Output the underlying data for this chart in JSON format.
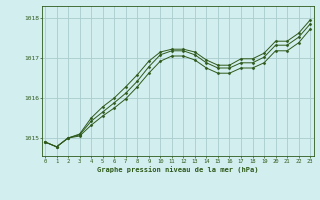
{
  "title": "Graphe pression niveau de la mer (hPa)",
  "bg_color": "#d3eeee",
  "grid_color": "#aacccc",
  "line_color": "#2d5a1b",
  "x_ticks": [
    0,
    1,
    2,
    3,
    4,
    5,
    6,
    7,
    8,
    9,
    10,
    11,
    12,
    13,
    14,
    15,
    16,
    17,
    18,
    19,
    20,
    21,
    22,
    23
  ],
  "y_ticks": [
    1015,
    1016,
    1017,
    1018
  ],
  "ylim": [
    1014.55,
    1018.3
  ],
  "xlim": [
    -0.3,
    23.3
  ],
  "line1": [
    1014.9,
    1014.78,
    1015.0,
    1015.1,
    1015.5,
    1015.78,
    1016.0,
    1016.28,
    1016.58,
    1016.92,
    1017.15,
    1017.22,
    1017.22,
    1017.15,
    1016.95,
    1016.82,
    1016.82,
    1016.98,
    1016.98,
    1017.12,
    1017.42,
    1017.42,
    1017.62,
    1017.95
  ],
  "line2": [
    1014.9,
    1014.78,
    1015.0,
    1015.08,
    1015.42,
    1015.65,
    1015.88,
    1016.12,
    1016.42,
    1016.78,
    1017.08,
    1017.18,
    1017.18,
    1017.08,
    1016.88,
    1016.75,
    1016.75,
    1016.88,
    1016.88,
    1017.02,
    1017.32,
    1017.32,
    1017.52,
    1017.85
  ],
  "line3": [
    1014.9,
    1014.78,
    1015.0,
    1015.05,
    1015.32,
    1015.55,
    1015.75,
    1015.98,
    1016.28,
    1016.62,
    1016.92,
    1017.05,
    1017.05,
    1016.95,
    1016.75,
    1016.62,
    1016.62,
    1016.75,
    1016.75,
    1016.88,
    1017.18,
    1017.18,
    1017.38,
    1017.72
  ]
}
